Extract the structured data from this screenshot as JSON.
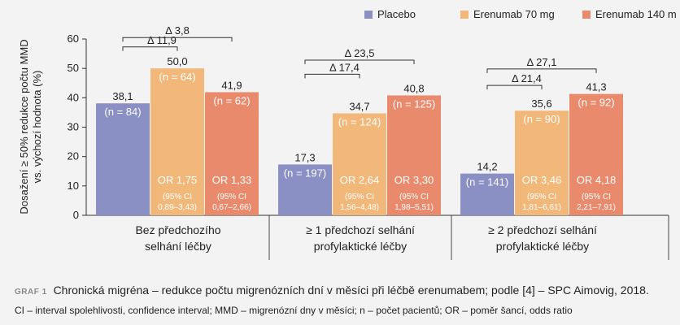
{
  "chart_data": {
    "type": "bar",
    "ylabel": "Dosažení ≥ 50% redukce počtu MMD vs. výchozí hodnota (%)",
    "ylabel_lines": [
      "Dosažení ≥ 50% redukce počtu MMD",
      "vs. výchozí hodnota (%)"
    ],
    "ylim": [
      0,
      60
    ],
    "yticks": [
      "0",
      "10",
      "20",
      "30",
      "40",
      "50",
      "60"
    ],
    "grid": false,
    "legend_position": "top-right",
    "categories": [
      "Bez předchozího selhání léčby",
      "≥ 1 předchozí selhání profylaktické léčby",
      "≥ 2 předchozí selhání profylaktické léčby"
    ],
    "category_lines": [
      [
        "Bez předchozího",
        "selhání léčby"
      ],
      [
        "≥ 1 předchozí selhání",
        "profylaktické léčby"
      ],
      [
        "≥ 2 předchozí selhání",
        "profylaktické léčby"
      ]
    ],
    "series": [
      {
        "name": "Placebo",
        "color": "#8a8fc4",
        "values": [
          38.1,
          17.3,
          14.2
        ],
        "value_labels": [
          "38,1",
          "17,3",
          "14,2"
        ],
        "n_labels": [
          "(n = 84)",
          "(n = 197)",
          "(n = 141)"
        ],
        "or_labels": [
          null,
          null,
          null
        ],
        "ci_labels": [
          null,
          null,
          null
        ]
      },
      {
        "name": "Erenumab 70 mg",
        "color": "#f2b87a",
        "values": [
          50.0,
          34.7,
          35.6
        ],
        "value_labels": [
          "50,0",
          "34,7",
          "35,6"
        ],
        "n_labels": [
          "(n = 64)",
          "(n = 124)",
          "(n = 90)"
        ],
        "or_labels": [
          "OR 1,75",
          "OR 2,64",
          "OR 3,46"
        ],
        "ci_labels": [
          [
            "(95% CI",
            "0,89–3,43)"
          ],
          [
            "(95% CI",
            "1,56–4,48)"
          ],
          [
            "(95% CI",
            "1,81–6,61)"
          ]
        ]
      },
      {
        "name": "Erenumab 140 m",
        "color": "#ea8a6c",
        "values": [
          41.9,
          40.8,
          41.3
        ],
        "value_labels": [
          "41,9",
          "40,8",
          "41,3"
        ],
        "n_labels": [
          "(n = 62)",
          "(n = 125)",
          "(n = 92)"
        ],
        "or_labels": [
          "OR 1,33",
          "OR 3,30",
          "OR 4,18"
        ],
        "ci_labels": [
          [
            "(95% CI",
            "0,67–2,66)"
          ],
          [
            "(95% CI",
            "1,98–5,51)"
          ],
          [
            "(95% CI",
            "2,21–7,91)"
          ]
        ]
      }
    ],
    "annotations": [
      {
        "group": 0,
        "from_series": 0,
        "to_series": 1,
        "label": "Δ 11,9",
        "y": 57.3,
        "tier": "lower"
      },
      {
        "group": 0,
        "from_series": 0,
        "to_series": 2,
        "label": "Δ 3,8",
        "y": 60.5,
        "tier": "upper"
      },
      {
        "group": 1,
        "from_series": 0,
        "to_series": 1,
        "label": "Δ 17,4",
        "y": 48.0,
        "tier": "lower"
      },
      {
        "group": 1,
        "from_series": 0,
        "to_series": 2,
        "label": "Δ 23,5",
        "y": 52.8,
        "tier": "upper"
      },
      {
        "group": 2,
        "from_series": 0,
        "to_series": 1,
        "label": "Δ 21,4",
        "y": 44.2,
        "tier": "lower"
      },
      {
        "group": 2,
        "from_series": 0,
        "to_series": 2,
        "label": "Δ 27,1",
        "y": 49.8,
        "tier": "upper"
      }
    ]
  },
  "caption": {
    "graf_label": "GRAF 1",
    "text": "Chronická migréna – redukce počtu migrenózních dní v měsíci při léčbě erenumabem; podle [4] – SPC Aimovig, 2018."
  },
  "footnote": {
    "text": "CI – interval spolehlivosti, confidence interval; MMD – migrenózní dny v měsíci; n – počet pacientů; OR – poměr šancí, odds ratio"
  }
}
